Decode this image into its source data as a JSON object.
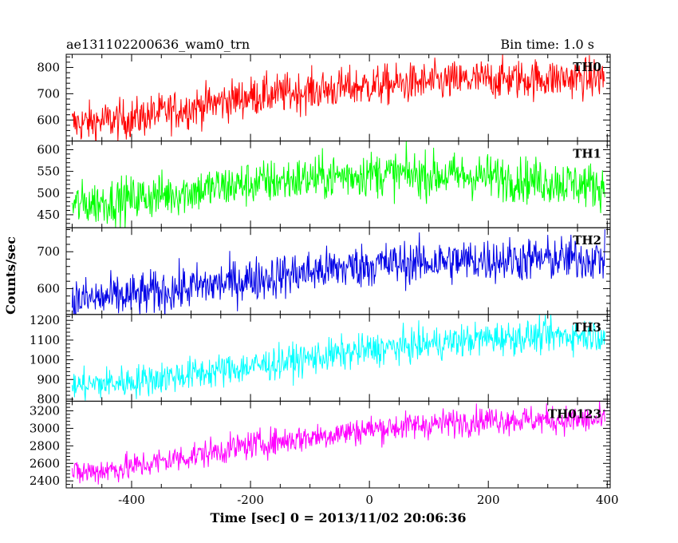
{
  "header": {
    "title": "ae131102200636_wam0_trn",
    "bin_time": "Bin time: 1.0 s"
  },
  "chart_data": {
    "type": "line",
    "xlabel": "Time [sec] 0 = 2013/11/02 20:06:36",
    "ylabel": "Counts/sec",
    "xlim": [
      -510,
      405
    ],
    "xticks": [
      -400,
      -200,
      0,
      200,
      400
    ],
    "grid": false,
    "panels": [
      {
        "label": "TH0",
        "color": "#ff0000",
        "ylim": [
          520,
          850
        ],
        "yticks": [
          600,
          700,
          800
        ],
        "trend": [
          {
            "x": -500,
            "y": 585
          },
          {
            "x": -400,
            "y": 605
          },
          {
            "x": -200,
            "y": 690
          },
          {
            "x": 0,
            "y": 730
          },
          {
            "x": 200,
            "y": 755
          },
          {
            "x": 400,
            "y": 760
          }
        ],
        "noise": 38
      },
      {
        "label": "TH1",
        "color": "#00ff00",
        "ylim": [
          420,
          620
        ],
        "yticks": [
          450,
          500,
          550,
          600
        ],
        "trend": [
          {
            "x": -500,
            "y": 472
          },
          {
            "x": -400,
            "y": 487
          },
          {
            "x": -200,
            "y": 522
          },
          {
            "x": 0,
            "y": 545
          },
          {
            "x": 200,
            "y": 538
          },
          {
            "x": 400,
            "y": 515
          }
        ],
        "noise": 26
      },
      {
        "label": "TH2",
        "color": "#0000e6",
        "ylim": [
          530,
          765
        ],
        "yticks": [
          600,
          700
        ],
        "trend": [
          {
            "x": -500,
            "y": 568
          },
          {
            "x": -400,
            "y": 580
          },
          {
            "x": -200,
            "y": 625
          },
          {
            "x": 0,
            "y": 665
          },
          {
            "x": 200,
            "y": 678
          },
          {
            "x": 400,
            "y": 682
          }
        ],
        "noise": 30
      },
      {
        "label": "TH3",
        "color": "#00ffff",
        "ylim": [
          790,
          1230
        ],
        "yticks": [
          800,
          900,
          1000,
          1100,
          1200
        ],
        "trend": [
          {
            "x": -500,
            "y": 868
          },
          {
            "x": -400,
            "y": 890
          },
          {
            "x": -200,
            "y": 965
          },
          {
            "x": 0,
            "y": 1050
          },
          {
            "x": 200,
            "y": 1110
          },
          {
            "x": 400,
            "y": 1130
          }
        ],
        "noise": 42
      },
      {
        "label": "TH0123",
        "color": "#ff00ff",
        "ylim": [
          2320,
          3310
        ],
        "yticks": [
          2400,
          2600,
          2800,
          3000,
          3200
        ],
        "trend": [
          {
            "x": -500,
            "y": 2480
          },
          {
            "x": -400,
            "y": 2560
          },
          {
            "x": -200,
            "y": 2810
          },
          {
            "x": 0,
            "y": 2990
          },
          {
            "x": 200,
            "y": 3100
          },
          {
            "x": 400,
            "y": 3090
          }
        ],
        "noise": 80
      }
    ]
  }
}
